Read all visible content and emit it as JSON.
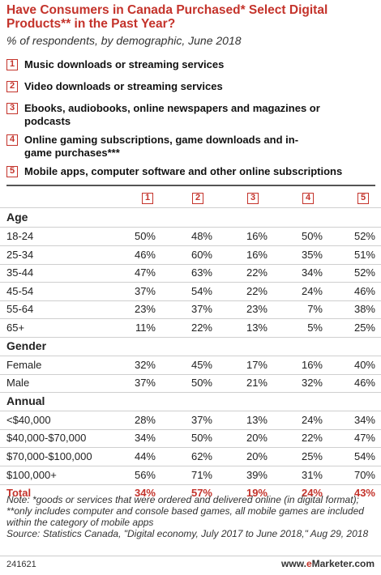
{
  "title": "Have Consumers in Canada Purchased* Select Digital Products** in the Past Year?",
  "subtitle": "% of respondents, by demographic, June 2018",
  "legend": [
    {
      "num": "1",
      "text": "Music downloads or streaming services"
    },
    {
      "num": "2",
      "text": "Video downloads or streaming services"
    },
    {
      "num": "3",
      "text": "Ebooks, audiobooks, online newspapers and magazines or podcasts"
    },
    {
      "num": "4",
      "text": "Online gaming subscriptions, game downloads and in-game purchases***"
    },
    {
      "num": "5",
      "text": "Mobile apps, computer software and other online subscriptions"
    }
  ],
  "columns": [
    "1",
    "2",
    "3",
    "4",
    "5"
  ],
  "chart_data": {
    "type": "table",
    "columns": [
      "1",
      "2",
      "3",
      "4",
      "5"
    ],
    "sections": [
      {
        "name": "Age",
        "rows": [
          {
            "label": "18-24",
            "values": [
              "50%",
              "48%",
              "16%",
              "50%",
              "52%"
            ]
          },
          {
            "label": "25-34",
            "values": [
              "46%",
              "60%",
              "16%",
              "35%",
              "51%"
            ]
          },
          {
            "label": "35-44",
            "values": [
              "47%",
              "63%",
              "22%",
              "34%",
              "52%"
            ]
          },
          {
            "label": "45-54",
            "values": [
              "37%",
              "54%",
              "22%",
              "24%",
              "46%"
            ]
          },
          {
            "label": "55-64",
            "values": [
              "23%",
              "37%",
              "23%",
              "7%",
              "38%"
            ]
          },
          {
            "label": "65+",
            "values": [
              "11%",
              "22%",
              "13%",
              "5%",
              "25%"
            ]
          }
        ]
      },
      {
        "name": "Gender",
        "rows": [
          {
            "label": "Female",
            "values": [
              "32%",
              "45%",
              "17%",
              "16%",
              "40%"
            ]
          },
          {
            "label": "Male",
            "values": [
              "37%",
              "50%",
              "21%",
              "32%",
              "46%"
            ]
          }
        ]
      },
      {
        "name": "Annual",
        "rows": [
          {
            "label": "<$40,000",
            "values": [
              "28%",
              "37%",
              "13%",
              "24%",
              "34%"
            ]
          },
          {
            "label": "$40,000-$70,000",
            "values": [
              "34%",
              "50%",
              "20%",
              "22%",
              "47%"
            ]
          },
          {
            "label": "$70,000-$100,000",
            "values": [
              "44%",
              "62%",
              "20%",
              "25%",
              "54%"
            ]
          },
          {
            "label": "$100,000+",
            "values": [
              "56%",
              "71%",
              "39%",
              "31%",
              "70%"
            ]
          }
        ]
      }
    ],
    "total": {
      "label": "Total",
      "values": [
        "34%",
        "57%",
        "19%",
        "24%",
        "43%"
      ]
    }
  },
  "note": "Note: *goods or services that were ordered and delivered online (in digital format); **only includes computer and console based games, all mobile games are included within the category of mobile apps",
  "source": "Source: Statistics Canada, \"Digital economy, July 2017 to June 2018,\" Aug 29, 2018",
  "footer": {
    "code": "241621",
    "brand_prefix": "www.",
    "brand_e": "e",
    "brand_rest": "Marketer.com"
  },
  "colors": {
    "accent": "#c4332b",
    "rule": "#555555"
  }
}
